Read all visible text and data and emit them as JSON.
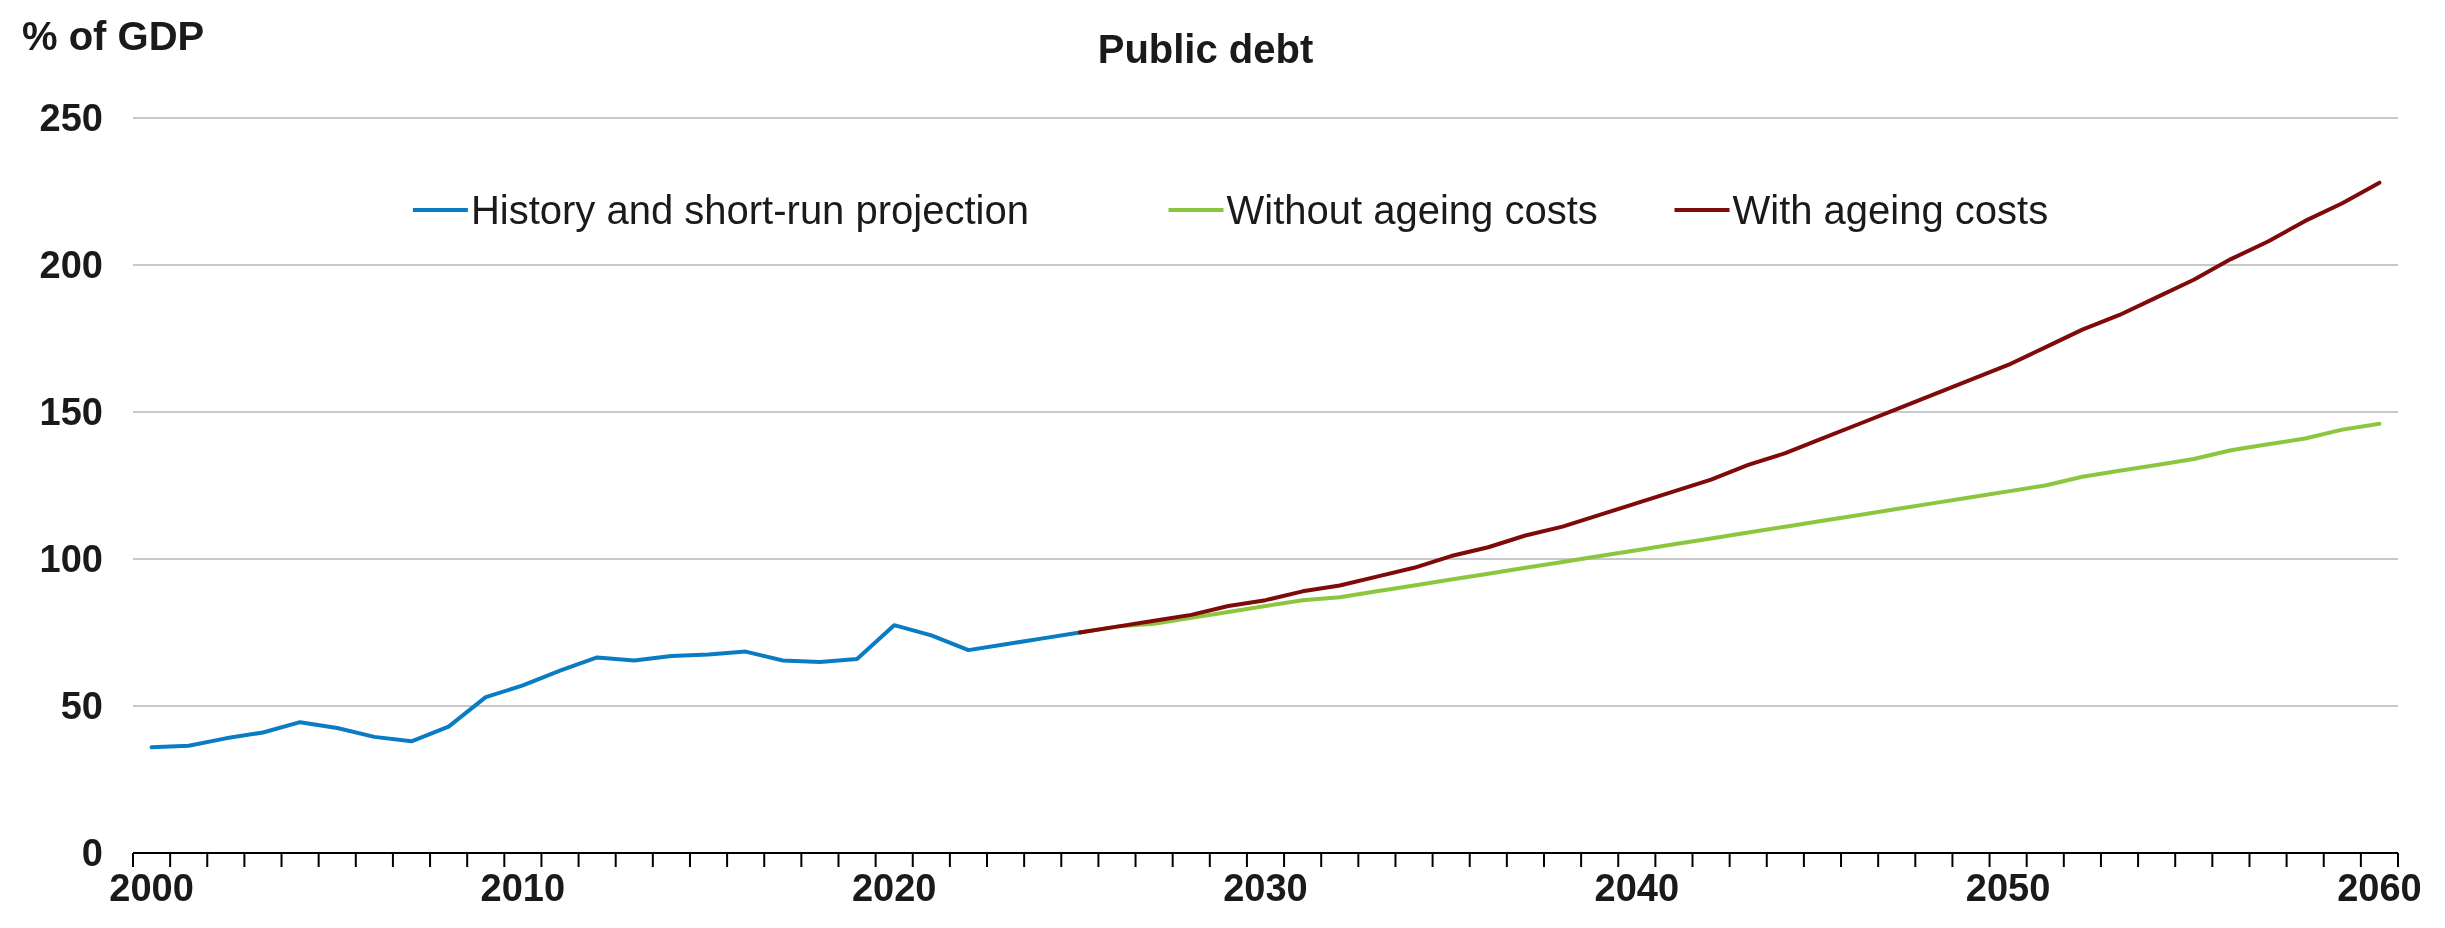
{
  "chart_data": {
    "type": "line",
    "title": "Public debt",
    "ylabel": "% of GDP",
    "legend": "top",
    "grid": "y",
    "marker": "none",
    "line_style": "solid",
    "xlim": [
      1999.5,
      2060.5
    ],
    "ylim": [
      0,
      250
    ],
    "yticks": [
      0,
      50,
      100,
      150,
      200,
      250
    ],
    "xticks": [
      2000,
      2010,
      2020,
      2030,
      2040,
      2050,
      2060,
      {
        "value": 1999.5,
        "label": null
      },
      {
        "value": 2000.5,
        "label": null
      },
      {
        "value": 2001.5,
        "label": null
      },
      {
        "value": 2002.5,
        "label": null
      },
      {
        "value": 2003.5,
        "label": null
      },
      {
        "value": 2004.5,
        "label": null
      },
      {
        "value": 2005.5,
        "label": null
      },
      {
        "value": 2006.5,
        "label": null
      },
      {
        "value": 2007.5,
        "label": null
      },
      {
        "value": 2008.5,
        "label": null
      },
      {
        "value": 2009.5,
        "label": null
      },
      {
        "value": 2010.5,
        "label": null
      },
      {
        "value": 2011.5,
        "label": null
      },
      {
        "value": 2012.5,
        "label": null
      },
      {
        "value": 2013.5,
        "label": null
      },
      {
        "value": 2014.5,
        "label": null
      },
      {
        "value": 2015.5,
        "label": null
      },
      {
        "value": 2016.5,
        "label": null
      },
      {
        "value": 2017.5,
        "label": null
      },
      {
        "value": 2018.5,
        "label": null
      },
      {
        "value": 2019.5,
        "label": null
      },
      {
        "value": 2020.5,
        "label": null
      },
      {
        "value": 2021.5,
        "label": null
      },
      {
        "value": 2022.5,
        "label": null
      },
      {
        "value": 2023.5,
        "label": null
      },
      {
        "value": 2024.5,
        "label": null
      },
      {
        "value": 2025.5,
        "label": null
      },
      {
        "value": 2026.5,
        "label": null
      },
      {
        "value": 2027.5,
        "label": null
      },
      {
        "value": 2028.5,
        "label": null
      },
      {
        "value": 2029.5,
        "label": null
      },
      {
        "value": 2030.5,
        "label": null
      },
      {
        "value": 2031.5,
        "label": null
      },
      {
        "value": 2032.5,
        "label": null
      },
      {
        "value": 2033.5,
        "label": null
      },
      {
        "value": 2034.5,
        "label": null
      },
      {
        "value": 2035.5,
        "label": null
      },
      {
        "value": 2036.5,
        "label": null
      },
      {
        "value": 2037.5,
        "label": null
      },
      {
        "value": 2038.5,
        "label": null
      },
      {
        "value": 2039.5,
        "label": null
      },
      {
        "value": 2040.5,
        "label": null
      },
      {
        "value": 2041.5,
        "label": null
      },
      {
        "value": 2042.5,
        "label": null
      },
      {
        "value": 2043.5,
        "label": null
      },
      {
        "value": 2044.5,
        "label": null
      },
      {
        "value": 2045.5,
        "label": null
      },
      {
        "value": 2046.5,
        "label": null
      },
      {
        "value": 2047.5,
        "label": null
      },
      {
        "value": 2048.5,
        "label": null
      },
      {
        "value": 2049.5,
        "label": null
      },
      {
        "value": 2050.5,
        "label": null
      },
      {
        "value": 2051.5,
        "label": null
      },
      {
        "value": 2052.5,
        "label": null
      },
      {
        "value": 2053.5,
        "label": null
      },
      {
        "value": 2054.5,
        "label": null
      },
      {
        "value": 2055.5,
        "label": null
      },
      {
        "value": 2056.5,
        "label": null
      },
      {
        "value": 2057.5,
        "label": null
      },
      {
        "value": 2058.5,
        "label": null
      },
      {
        "value": 2059.5,
        "label": null
      },
      {
        "value": 2060.5,
        "label": null
      }
    ],
    "series": [
      {
        "name": "History and short-run projection",
        "color": "#0a7cc4",
        "x": [
          2000,
          2001,
          2002,
          2003,
          2004,
          2005,
          2006,
          2007,
          2008,
          2009,
          2010,
          2011,
          2012,
          2013,
          2014,
          2015,
          2016,
          2017,
          2018,
          2019,
          2020,
          2021,
          2022,
          2023,
          2024,
          2025
        ],
        "values": [
          36,
          36.5,
          39,
          41,
          44.5,
          42.5,
          39.5,
          38,
          43,
          53,
          57,
          62,
          66.5,
          65.5,
          67,
          67.5,
          68.5,
          65.5,
          65,
          66,
          77.5,
          74,
          69,
          71,
          73,
          75
        ]
      },
      {
        "name": "Without ageing costs",
        "color": "#8cc63f",
        "x": [
          2025,
          2026,
          2027,
          2028,
          2029,
          2030,
          2031,
          2032,
          2033,
          2034,
          2035,
          2036,
          2037,
          2038,
          2039,
          2040,
          2041,
          2042,
          2043,
          2044,
          2045,
          2046,
          2047,
          2048,
          2049,
          2050,
          2051,
          2052,
          2053,
          2054,
          2055,
          2056,
          2057,
          2058,
          2059,
          2060
        ],
        "values": [
          75,
          77,
          78,
          80,
          82,
          84,
          86,
          87,
          89,
          91,
          93,
          95,
          97,
          99,
          101,
          103,
          105,
          107,
          109,
          111,
          113,
          115,
          117,
          119,
          121,
          123,
          125,
          128,
          130,
          132,
          134,
          137,
          139,
          141,
          144,
          146
        ]
      },
      {
        "name": "With ageing costs",
        "color": "#7f0a0a",
        "x": [
          2025,
          2026,
          2027,
          2028,
          2029,
          2030,
          2031,
          2032,
          2033,
          2034,
          2035,
          2036,
          2037,
          2038,
          2039,
          2040,
          2041,
          2042,
          2043,
          2044,
          2045,
          2046,
          2047,
          2048,
          2049,
          2050,
          2051,
          2052,
          2053,
          2054,
          2055,
          2056,
          2057,
          2058,
          2059,
          2060
        ],
        "values": [
          75,
          77,
          79,
          81,
          84,
          86,
          89,
          91,
          94,
          97,
          101,
          104,
          108,
          111,
          115,
          119,
          123,
          127,
          132,
          136,
          141,
          146,
          151,
          156,
          161,
          166,
          172,
          178,
          183,
          189,
          195,
          202,
          208,
          215,
          221,
          228
        ]
      }
    ]
  }
}
